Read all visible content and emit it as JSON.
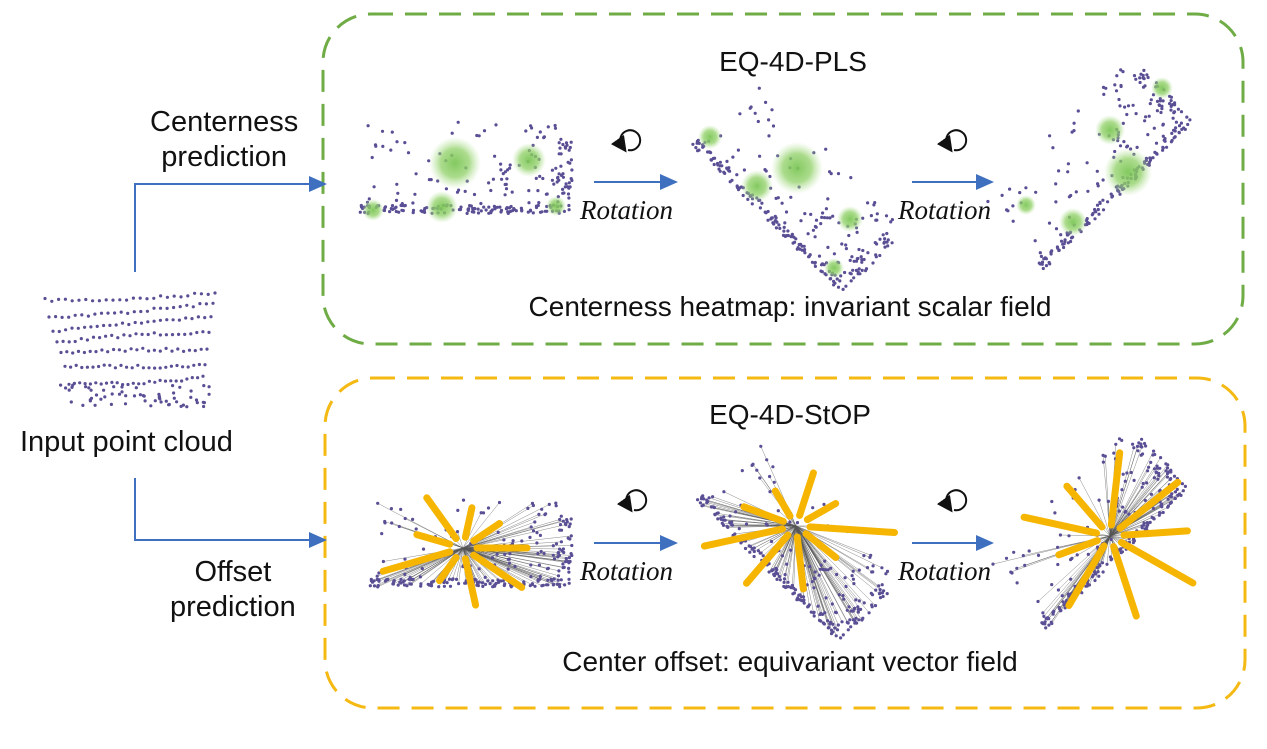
{
  "input_label": "Input point cloud",
  "branches": {
    "top_label_line1": "Centerness",
    "top_label_line2": "prediction",
    "bottom_label_line1": "Offset",
    "bottom_label_line2": "prediction"
  },
  "panels": [
    {
      "title": "EQ-4D-PLS",
      "caption": "Centerness heatmap: invariant scalar field",
      "border_color": "#6fac46",
      "rotation_label": "Rotation"
    },
    {
      "title": "EQ-4D-StOP",
      "caption": "Center offset: equivariant vector field",
      "border_color": "#f4b913",
      "rotation_label": "Rotation"
    }
  ],
  "colors": {
    "points": "#5a4e94",
    "heat": "#7cc657",
    "arrow": "#f5b500",
    "flow": "#3f6fbf",
    "offset_line": "#555555"
  },
  "icons": [
    "rotate-icon",
    "arrow-right-icon"
  ]
}
